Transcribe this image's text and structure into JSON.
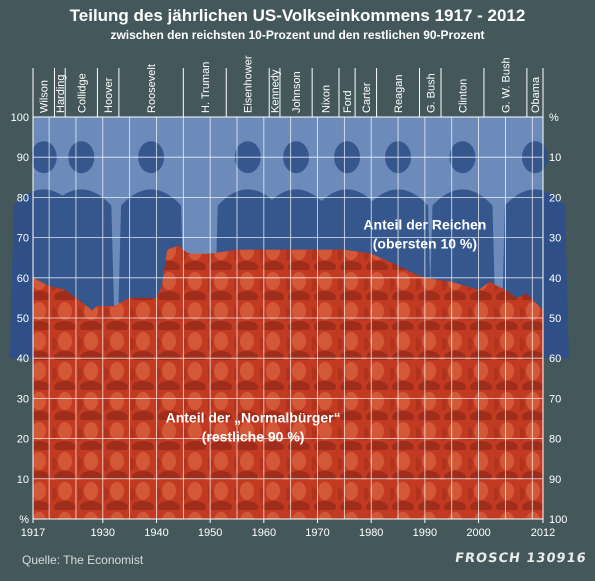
{
  "title": "Teilung des jährlichen US-Volkseinkommens 1917 - 2012",
  "subtitle": "zwischen den reichsten 10-Prozent und den restlichen 90-Prozent",
  "source": "Quelle: The Economist",
  "signature": "FROSCH 130916",
  "colors": {
    "background": "#44585b",
    "rich_area": "#3a5e94",
    "rest_area": "#c23a22",
    "sky": "#a9c1e8",
    "grid": "#ffffff",
    "text": "#ffffff"
  },
  "chart_data": {
    "type": "area",
    "title": "Teilung des jährlichen US-Volkseinkommens 1917 - 2012",
    "subtitle": "zwischen den reichsten 10-Prozent und den restlichen 90-Prozent",
    "xlabel": "",
    "ylabel": "%",
    "ylabel_right": "%",
    "xlim": [
      1917,
      2012
    ],
    "ylim": [
      0,
      100
    ],
    "y_ticks_left": [
      "100",
      "90",
      "80",
      "70",
      "60",
      "50",
      "40",
      "30",
      "20",
      "10",
      "%"
    ],
    "y_ticks_right": [
      "%",
      "10",
      "20",
      "30",
      "40",
      "50",
      "60",
      "70",
      "80",
      "90",
      "100"
    ],
    "x_ticks": [
      "1917",
      "1930",
      "1940",
      "1950",
      "1960",
      "1970",
      "1980",
      "1990",
      "2000",
      "2012"
    ],
    "x_tick_values": [
      1917,
      1930,
      1940,
      1950,
      1960,
      1970,
      1980,
      1990,
      2000,
      2012
    ],
    "x": [
      1917,
      1920,
      1923,
      1926,
      1928,
      1929,
      1932,
      1935,
      1938,
      1940,
      1941,
      1942,
      1944,
      1946,
      1950,
      1955,
      1960,
      1965,
      1970,
      1975,
      1980,
      1985,
      1988,
      1990,
      1995,
      2000,
      2002,
      2005,
      2007,
      2009,
      2012
    ],
    "series": [
      {
        "name": "Anteil der „Normalbürger“ (restliche 90 %)",
        "values": [
          60,
          58,
          57,
          54,
          52,
          53,
          53,
          55,
          55,
          55,
          58,
          67,
          68,
          66,
          66,
          67,
          67,
          67,
          67,
          67,
          66,
          63,
          61,
          60,
          59,
          57,
          59,
          57,
          55,
          56,
          52
        ]
      },
      {
        "name": "Anteil der Reichen (obersten 10 %)",
        "values": [
          40,
          42,
          43,
          46,
          48,
          47,
          47,
          45,
          45,
          45,
          42,
          33,
          32,
          34,
          34,
          33,
          33,
          33,
          33,
          33,
          34,
          37,
          39,
          40,
          41,
          43,
          41,
          43,
          45,
          44,
          48
        ]
      }
    ],
    "presidents": [
      {
        "name": "Wilson",
        "start": 1917,
        "end": 1921
      },
      {
        "name": "Harding",
        "start": 1921,
        "end": 1923
      },
      {
        "name": "Collidge",
        "start": 1923,
        "end": 1929
      },
      {
        "name": "Hoover",
        "start": 1929,
        "end": 1933
      },
      {
        "name": "Roosevelt",
        "start": 1933,
        "end": 1945
      },
      {
        "name": "H. Truman",
        "start": 1945,
        "end": 1953
      },
      {
        "name": "Eisenhower",
        "start": 1953,
        "end": 1961
      },
      {
        "name": "Kennedy",
        "start": 1961,
        "end": 1963
      },
      {
        "name": "Johnson",
        "start": 1963,
        "end": 1969
      },
      {
        "name": "Nixon",
        "start": 1969,
        "end": 1974
      },
      {
        "name": "Ford",
        "start": 1974,
        "end": 1977
      },
      {
        "name": "Carter",
        "start": 1977,
        "end": 1981
      },
      {
        "name": "Reagan",
        "start": 1981,
        "end": 1989
      },
      {
        "name": "G. Bush",
        "start": 1989,
        "end": 1993
      },
      {
        "name": "Clinton",
        "start": 1993,
        "end": 2001
      },
      {
        "name": "G. W. Bush",
        "start": 2001,
        "end": 2009
      },
      {
        "name": "Obama",
        "start": 2009,
        "end": 2012
      }
    ],
    "annotations": [
      {
        "lines": [
          "Anteil der Reichen",
          "(obersten 10 %)"
        ],
        "x": 1990,
        "y": 72
      },
      {
        "lines": [
          "Anteil der „Normalbürger“",
          "(restliche 90 %)"
        ],
        "x": 1958,
        "y": 24
      }
    ],
    "grid": true,
    "legend": "none"
  }
}
